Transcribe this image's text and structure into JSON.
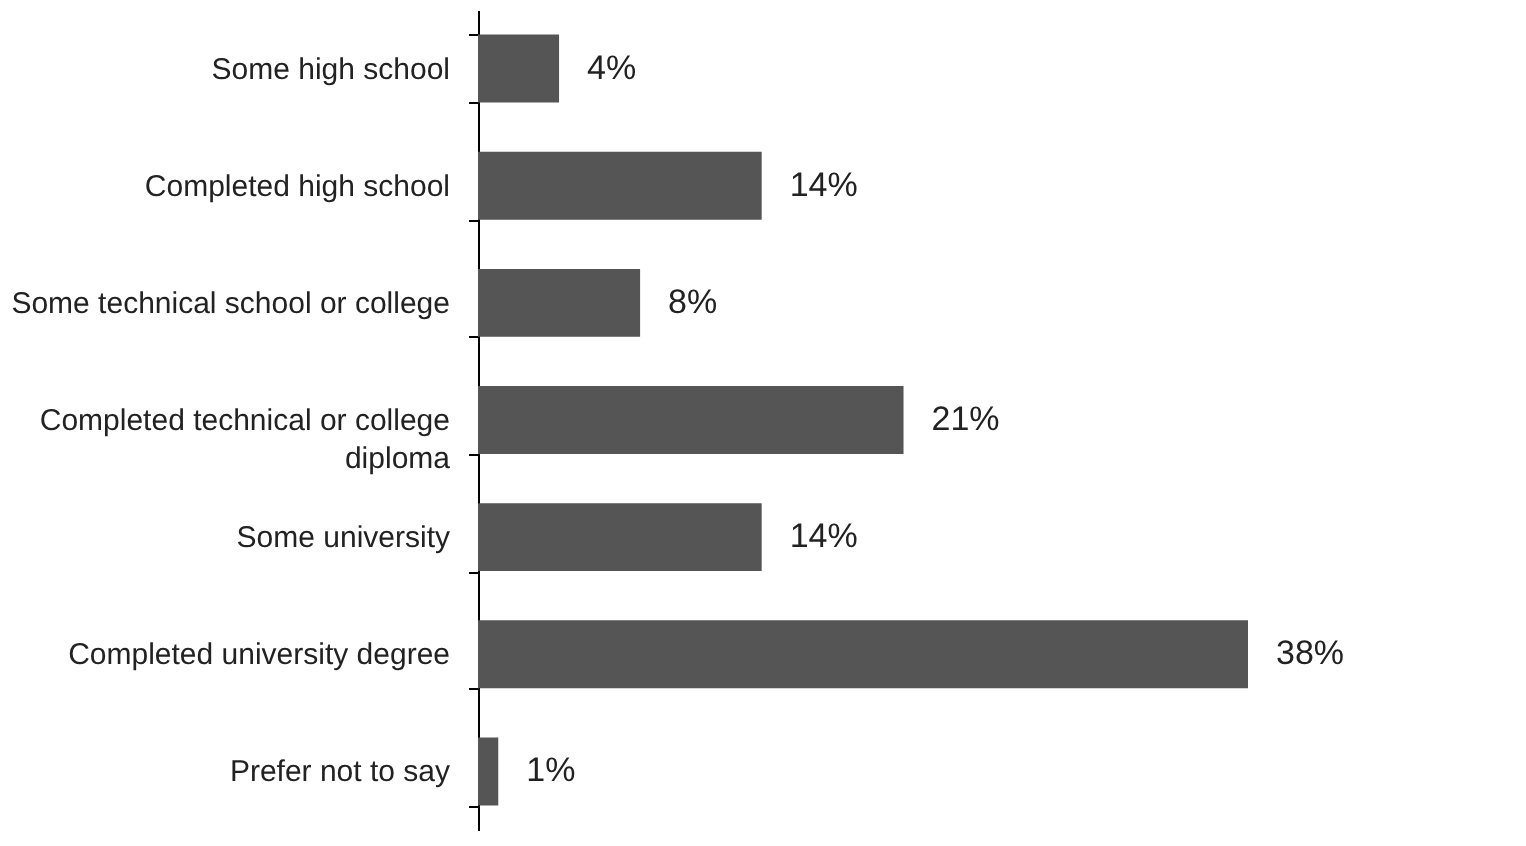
{
  "chart_data": {
    "type": "bar",
    "orientation": "horizontal",
    "categories": [
      "Some high school",
      "Completed high school",
      "Some technical school or college",
      "Completed technical or college diploma",
      "Some university",
      "Completed university degree",
      "Prefer not to say"
    ],
    "values": [
      4,
      14,
      8,
      21,
      14,
      38,
      1
    ],
    "value_labels": [
      "4%",
      "14%",
      "8%",
      "21%",
      "14%",
      "38%",
      "1%"
    ],
    "color": "#555555",
    "tick_labels": "y",
    "grid": false
  }
}
